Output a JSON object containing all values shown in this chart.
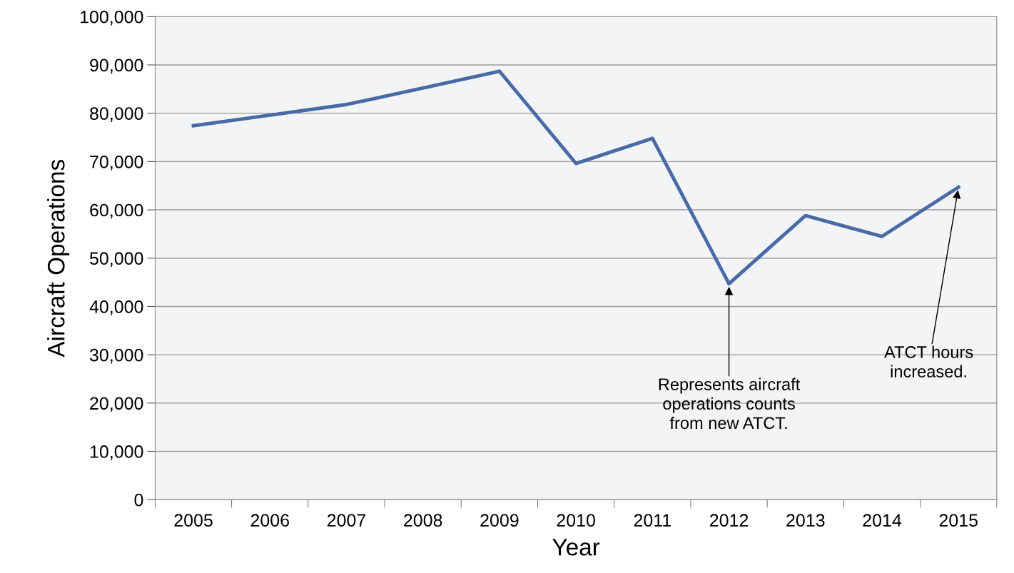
{
  "chart_data": {
    "type": "line",
    "xlabel": "Year",
    "ylabel": "Aircraft Operations",
    "categories": [
      "2005",
      "2006",
      "2007",
      "2008",
      "2009",
      "2010",
      "2011",
      "2012",
      "2013",
      "2014",
      "2015"
    ],
    "series": [
      {
        "color": "#4a6aa5",
        "values": [
          77400,
          79600,
          81800,
          85200,
          88700,
          69600,
          74800,
          44700,
          58800,
          54500,
          64700
        ]
      }
    ],
    "ylim": [
      0,
      100000
    ],
    "yticks": [
      {
        "value": 0,
        "label": "0"
      },
      {
        "value": 10000,
        "label": "10,000"
      },
      {
        "value": 20000,
        "label": "20,000"
      },
      {
        "value": 30000,
        "label": "30,000"
      },
      {
        "value": 40000,
        "label": "40,000"
      },
      {
        "value": 50000,
        "label": "50,000"
      },
      {
        "value": 60000,
        "label": "60,000"
      },
      {
        "value": 70000,
        "label": "70,000"
      },
      {
        "value": 80000,
        "label": "80,000"
      },
      {
        "value": 90000,
        "label": "90,000"
      },
      {
        "value": 100000,
        "label": "100,000"
      }
    ],
    "grid": "y",
    "legend": false,
    "marker": "none",
    "line_style": "solid",
    "annotations": [
      {
        "text": "Represents aircraft\noperations counts\nfrom new ATCT.",
        "x": "2012",
        "y": 44700
      },
      {
        "text": "ATCT hours\nincreased.",
        "x": "2015",
        "y": 64700
      }
    ]
  }
}
